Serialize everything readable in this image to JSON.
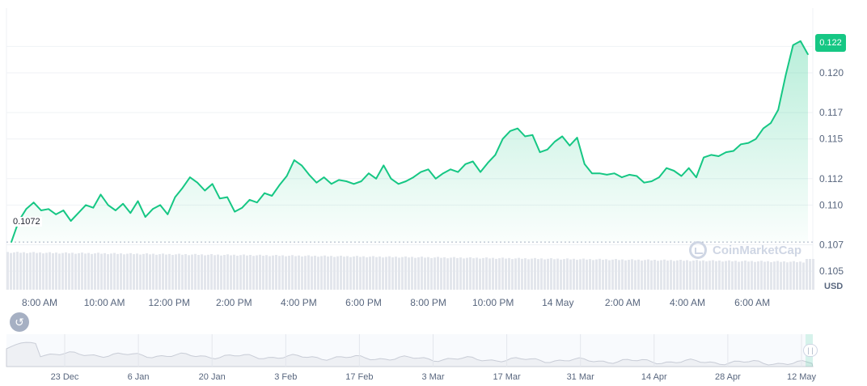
{
  "chart_data": [
    {
      "type": "area",
      "series": [
        {
          "values": [
            0.1072,
            0.1088,
            0.1097,
            0.1102,
            0.1096,
            0.1097,
            0.1093,
            0.1096,
            0.1088,
            0.1094,
            0.11,
            0.1098,
            0.1108,
            0.11,
            0.1096,
            0.1101,
            0.1094,
            0.1103,
            0.1091,
            0.1097,
            0.11,
            0.1093,
            0.1106,
            0.1113,
            0.1121,
            0.1117,
            0.1111,
            0.1116,
            0.1105,
            0.1106,
            0.1095,
            0.1098,
            0.1104,
            0.1102,
            0.1109,
            0.1107,
            0.1115,
            0.1122,
            0.1134,
            0.113,
            0.1123,
            0.1117,
            0.1121,
            0.1116,
            0.1119,
            0.1118,
            0.1116,
            0.1118,
            0.1124,
            0.112,
            0.113,
            0.112,
            0.1116,
            0.1118,
            0.1121,
            0.1125,
            0.1127,
            0.112,
            0.1124,
            0.1127,
            0.1125,
            0.1131,
            0.1133,
            0.1125,
            0.1132,
            0.1138,
            0.115,
            0.1156,
            0.1158,
            0.1152,
            0.1153,
            0.114,
            0.1142,
            0.1148,
            0.1152,
            0.1145,
            0.1151,
            0.1131,
            0.1124,
            0.1124,
            0.1123,
            0.1124,
            0.1121,
            0.1123,
            0.1122,
            0.1117,
            0.1118,
            0.1121,
            0.1128,
            0.1126,
            0.1122,
            0.1128,
            0.1121,
            0.1136,
            0.1138,
            0.1137,
            0.114,
            0.1141,
            0.1146,
            0.1147,
            0.115,
            0.1158,
            0.1162,
            0.1172,
            0.1198,
            0.1221,
            0.1224,
            0.1214
          ]
        }
      ],
      "x_ticks": [
        "8:00 AM",
        "10:00 AM",
        "12:00 PM",
        "2:00 PM",
        "4:00 PM",
        "6:00 PM",
        "8:00 PM",
        "10:00 PM",
        "14 May",
        "2:00 AM",
        "4:00 AM",
        "6:00 AM"
      ],
      "y_ticks": [
        "0.122",
        "0.120",
        "0.117",
        "0.115",
        "0.112",
        "0.110",
        "0.107",
        "0.105"
      ],
      "ylim": [
        0.1036,
        0.1249
      ],
      "current_price": "0.122",
      "open_price": "0.1072",
      "currency": "USD",
      "grid": true,
      "colors": {
        "line": "#16c784",
        "grid": "#eff2f5",
        "volume": "#e3e6ec",
        "navigator": "#c8ccd6"
      }
    },
    {
      "type": "area",
      "name": "navigator",
      "x_ticks": [
        "23 Dec",
        "6 Jan",
        "20 Jan",
        "3 Feb",
        "17 Feb",
        "3 Mar",
        "17 Mar",
        "31 Mar",
        "14 Apr",
        "28 Apr",
        "12 May"
      ]
    }
  ],
  "watermark": "CoinMarketCap",
  "icons": {
    "history": "history-icon",
    "handle": "range-handle-icon"
  }
}
